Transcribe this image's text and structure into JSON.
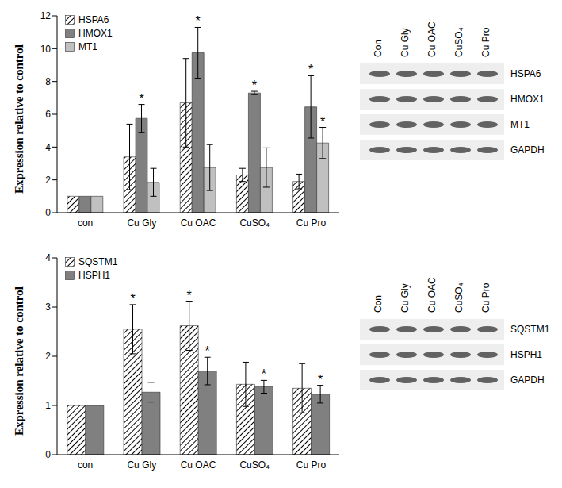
{
  "chart_data": [
    {
      "type": "bar",
      "categories": [
        "con",
        "Cu Gly",
        "Cu OAC",
        "CuSO₄",
        "Cu Pro"
      ],
      "y_label": "Expression relative to control",
      "ylim": [
        0,
        12
      ],
      "yticks": [
        0,
        2,
        4,
        6,
        8,
        10,
        12
      ],
      "legend": "upper left",
      "series": [
        {
          "name": "HSPA6",
          "color": "#000000",
          "values": [
            1,
            3.4,
            6.7,
            2.3,
            1.9
          ],
          "error": [
            0,
            2.0,
            2.7,
            0.4,
            0.45
          ],
          "annotations": [
            null,
            null,
            null,
            null,
            null
          ]
        },
        {
          "name": "HMOX1",
          "color": "#808080",
          "values": [
            1,
            5.75,
            9.75,
            7.3,
            6.45
          ],
          "error": [
            0,
            0.85,
            1.55,
            0.1,
            1.9
          ],
          "annotations": [
            null,
            "*",
            "*",
            "*",
            "*"
          ]
        },
        {
          "name": "MT1",
          "color": "#c0c0c0",
          "values": [
            1,
            1.85,
            2.75,
            2.75,
            4.25
          ],
          "error": [
            0,
            0.85,
            1.4,
            1.2,
            0.95
          ],
          "annotations": [
            null,
            null,
            null,
            null,
            "*"
          ]
        }
      ]
    },
    {
      "type": "bar",
      "categories": [
        "con",
        "Cu Gly",
        "Cu OAC",
        "CuSO₄",
        "Cu Pro"
      ],
      "y_label": "Expression relative to control",
      "ylim": [
        0,
        4
      ],
      "yticks": [
        0,
        1,
        2,
        3,
        4
      ],
      "legend": "upper left",
      "series": [
        {
          "name": "SQSTM1",
          "color": "#000000",
          "values": [
            1,
            2.55,
            2.62,
            1.43,
            1.35
          ],
          "error": [
            0,
            0.5,
            0.5,
            0.45,
            0.5
          ],
          "annotations": [
            null,
            "*",
            "*",
            null,
            null
          ]
        },
        {
          "name": "HSPH1",
          "color": "#808080",
          "values": [
            1,
            1.27,
            1.7,
            1.38,
            1.23
          ],
          "error": [
            0,
            0.2,
            0.28,
            0.13,
            0.18
          ],
          "annotations": [
            null,
            null,
            "*",
            "*",
            "*"
          ]
        }
      ]
    }
  ],
  "blots": [
    {
      "lanes": [
        "Con",
        "Cu Gly",
        "Cu OAC",
        "CuSO₄",
        "Cu Pro"
      ],
      "rows": [
        "HSPA6",
        "HMOX1",
        "MT1",
        "GAPDH"
      ]
    },
    {
      "lanes": [
        "Con",
        "Cu Gly",
        "Cu OAC",
        "CuSO₄",
        "Cu Pro"
      ],
      "rows": [
        "SQSTM1",
        "HSPH1",
        "GAPDH"
      ]
    }
  ]
}
